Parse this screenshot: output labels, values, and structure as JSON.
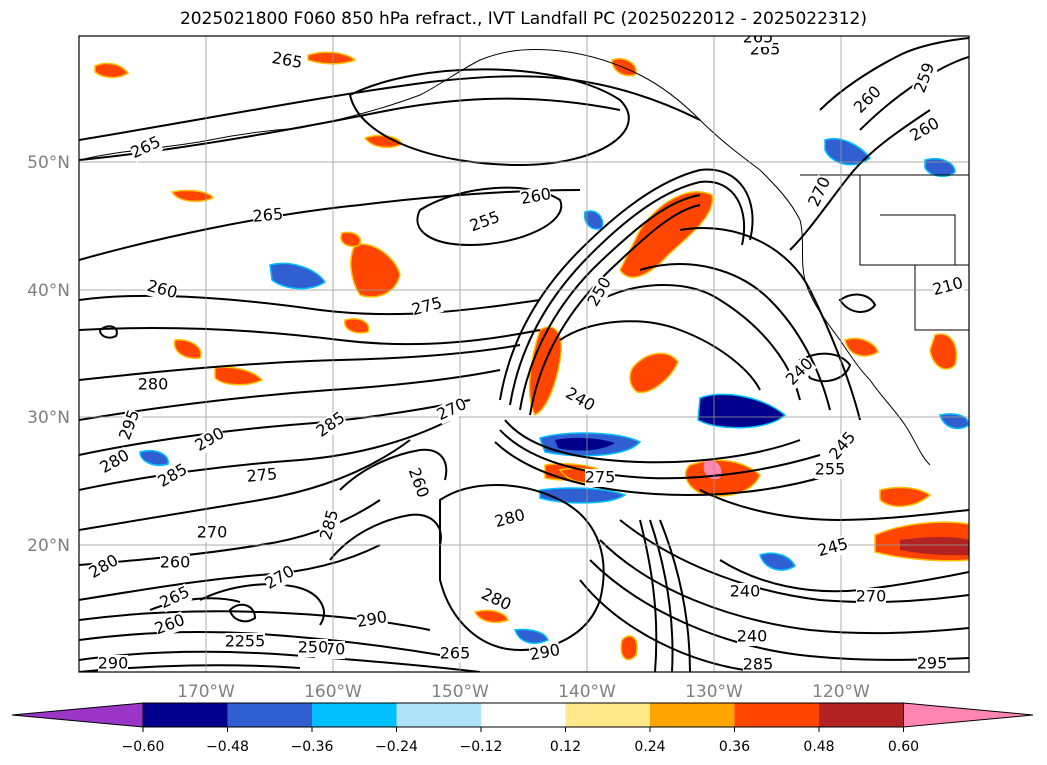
{
  "title": "2025021800 F060 850 hPa refract., IVT Landfall PC (2025022012 - 2025022312)",
  "map": {
    "lat_labels": [
      "50°N",
      "40°N",
      "30°N",
      "20°N"
    ],
    "lon_labels": [
      "170°W",
      "160°W",
      "150°W",
      "140°W",
      "130°W",
      "120°W"
    ],
    "gridlines": true,
    "contour_labels": [
      "265",
      "265",
      "265",
      "259",
      "260",
      "265",
      "260",
      "255",
      "260",
      "265",
      "260",
      "275",
      "270",
      "250",
      "280",
      "240",
      "240",
      "285",
      "270",
      "245",
      "290",
      "275",
      "285",
      "280",
      "260",
      "275",
      "295",
      "280",
      "285",
      "240",
      "270",
      "245",
      "270",
      "210",
      "280",
      "260",
      "270",
      "265",
      "250",
      "290",
      "280",
      "255",
      "290",
      "240",
      "285",
      "270",
      "290",
      "295",
      "250",
      "255",
      "260",
      "265"
    ],
    "contour_color": "#000000",
    "coastline_color": "#000000"
  },
  "colorbar": {
    "tick_labels": [
      "−0.60",
      "−0.48",
      "−0.36",
      "−0.24",
      "−0.12",
      "0.12",
      "0.24",
      "0.36",
      "0.48",
      "0.60"
    ],
    "colors": [
      "#9a35c8",
      "#00008b",
      "#2f5fd0",
      "#00bfff",
      "#b0e2fa",
      "#ffffff",
      "#ffe98a",
      "#ffa500",
      "#ff4500",
      "#b22222",
      "#ff86b0"
    ],
    "extend": "both"
  }
}
